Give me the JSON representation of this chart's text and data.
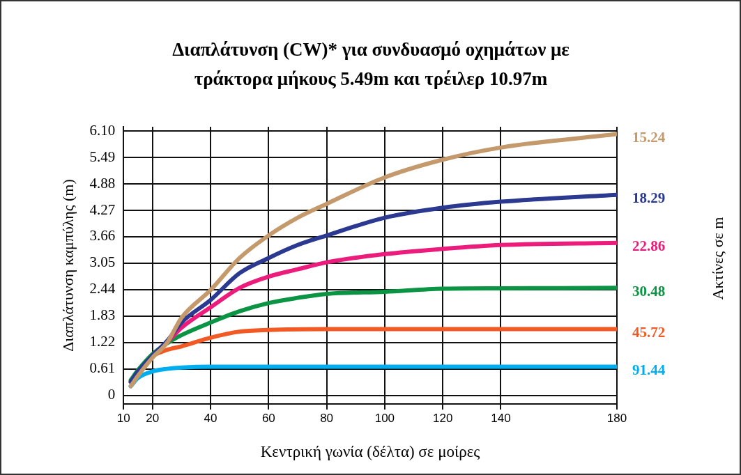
{
  "chart_data": {
    "type": "line",
    "title": "Διαπλάτυνση (CW)* για συνδυασμό οχημάτων με τράκτορα μήκους 5.49m και τρέιλερ 10.97m",
    "xlabel": "Κεντρική γωνία (δέλτα) σε μοίρες",
    "ylabel": "Διαπλάτυνση καμπύλης (m)",
    "legend_title": "Ακτίνες σε m",
    "xlim": [
      10,
      180
    ],
    "xticks": [
      10,
      20,
      40,
      60,
      80,
      100,
      120,
      140,
      180
    ],
    "ylim": [
      -0.2,
      6.2
    ],
    "yticks": [
      0,
      0.61,
      1.22,
      1.83,
      2.44,
      3.05,
      3.66,
      4.27,
      4.88,
      5.49,
      {
        "value": 6.1,
        "label": "6.10"
      }
    ],
    "grid": true,
    "marker": "none",
    "line_style": "solid",
    "series": [
      {
        "name": "15.24",
        "color": "#c49a6c",
        "x": [
          12.5,
          15,
          20,
          25,
          30,
          40,
          50,
          60,
          70,
          80,
          100,
          120,
          140,
          180
        ],
        "values": [
          0.21,
          0.45,
          0.87,
          1.21,
          1.79,
          2.43,
          3.17,
          3.69,
          4.1,
          4.42,
          5.03,
          5.44,
          5.72,
          6.03
        ]
      },
      {
        "name": "18.29",
        "color": "#2b3990",
        "x": [
          12.5,
          15,
          20,
          25,
          30,
          40,
          50,
          60,
          70,
          80,
          100,
          120,
          140,
          180
        ],
        "values": [
          0.31,
          0.55,
          0.92,
          1.25,
          1.68,
          2.2,
          2.82,
          3.17,
          3.47,
          3.69,
          4.1,
          4.33,
          4.47,
          4.63
        ]
      },
      {
        "name": "22.86",
        "color": "#ec1c7c",
        "x": [
          20,
          25,
          30,
          40,
          50,
          60,
          70,
          80,
          100,
          120,
          140,
          180
        ],
        "values": [
          0.92,
          1.22,
          1.56,
          2.03,
          2.48,
          2.74,
          2.91,
          3.07,
          3.26,
          3.38,
          3.47,
          3.52
        ]
      },
      {
        "name": "30.48",
        "color": "#0b9444",
        "x": [
          12.5,
          15,
          20,
          25,
          30,
          40,
          50,
          60,
          70,
          80,
          100,
          120,
          140,
          180
        ],
        "values": [
          0.35,
          0.58,
          0.95,
          1.2,
          1.39,
          1.68,
          1.94,
          2.13,
          2.25,
          2.34,
          2.39,
          2.46,
          2.47,
          2.48
        ]
      },
      {
        "name": "45.72",
        "color": "#f15a24",
        "x": [
          12.5,
          15,
          20,
          25,
          30,
          40,
          50,
          60,
          80,
          100,
          120,
          140,
          180
        ],
        "values": [
          0.31,
          0.55,
          0.9,
          1.05,
          1.13,
          1.33,
          1.47,
          1.51,
          1.53,
          1.53,
          1.53,
          1.53,
          1.53
        ]
      },
      {
        "name": "91.44",
        "color": "#00aeef",
        "x": [
          12.5,
          15,
          20,
          25,
          30,
          40,
          60,
          80,
          100,
          120,
          140,
          180
        ],
        "values": [
          0.21,
          0.4,
          0.55,
          0.61,
          0.64,
          0.66,
          0.66,
          0.66,
          0.66,
          0.66,
          0.66,
          0.66
        ]
      }
    ]
  }
}
